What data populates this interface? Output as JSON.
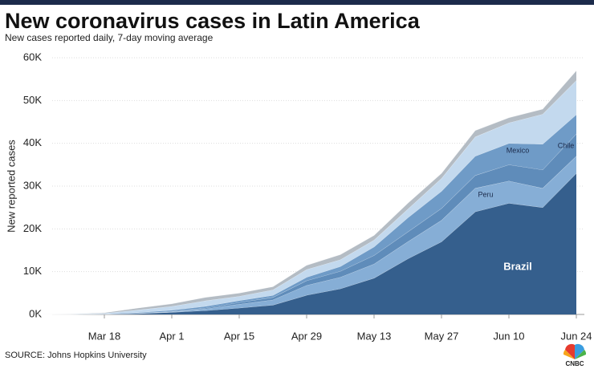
{
  "chart_data": {
    "type": "stacked-area",
    "title": "New coronavirus cases in Latin America",
    "subtitle": "New cases reported daily, 7-day moving average",
    "y_label": "New reported cases",
    "source": "SOURCE: Johns Hopkins University",
    "logo": "CNBC",
    "x": [
      "Mar 4",
      "Mar 11",
      "Mar 18",
      "Mar 25",
      "Apr 1",
      "Apr 8",
      "Apr 15",
      "Apr 22",
      "Apr 29",
      "May 6",
      "May 13",
      "May 20",
      "May 27",
      "Jun 3",
      "Jun 10",
      "Jun 17",
      "Jun 24"
    ],
    "xticks": [
      "Mar 18",
      "Apr 1",
      "Apr 15",
      "Apr 29",
      "May 13",
      "May 27",
      "Jun 10",
      "Jun 24"
    ],
    "ylim": [
      0,
      60000
    ],
    "yticks": [
      {
        "value": 0,
        "label": "0K"
      },
      {
        "value": 10000,
        "label": "10K"
      },
      {
        "value": 20000,
        "label": "20K"
      },
      {
        "value": 30000,
        "label": "30K"
      },
      {
        "value": 40000,
        "label": "40K"
      },
      {
        "value": 50000,
        "label": "50K"
      },
      {
        "value": 60000,
        "label": "60K"
      }
    ],
    "grid": true,
    "series": [
      {
        "name": "Brazil",
        "color": "#355f8d",
        "values": [
          0,
          0,
          50,
          200,
          500,
          900,
          1500,
          2200,
          4500,
          6000,
          8500,
          13000,
          17000,
          24000,
          26000,
          25000,
          33000
        ]
      },
      {
        "name": "Peru",
        "color": "#86aed6",
        "values": [
          0,
          0,
          20,
          50,
          100,
          400,
          900,
          1200,
          2300,
          2700,
          3300,
          4000,
          5000,
          5500,
          5200,
          4500,
          4000
        ]
      },
      {
        "name": "Mexico",
        "color": "#5f8cba",
        "values": [
          0,
          0,
          10,
          50,
          100,
          200,
          400,
          600,
          1100,
          1400,
          2000,
          2300,
          2800,
          3000,
          3800,
          4300,
          5200
        ]
      },
      {
        "name": "Chile",
        "color": "#6f9bc7",
        "values": [
          0,
          0,
          30,
          150,
          300,
          400,
          450,
          450,
          800,
          1100,
          2000,
          3300,
          4000,
          4500,
          5000,
          6000,
          4500
        ]
      },
      {
        "color": "#c3d9ee",
        "values": [
          0,
          50,
          150,
          600,
          900,
          1300,
          1000,
          1300,
          1800,
          1600,
          1600,
          2000,
          3000,
          4500,
          4800,
          7000,
          8000
        ]
      },
      {
        "color": "#b4bcc4",
        "values": [
          0,
          50,
          150,
          450,
          600,
          800,
          750,
          750,
          1000,
          1200,
          1100,
          1400,
          1200,
          1500,
          1200,
          1200,
          2300
        ]
      }
    ]
  }
}
